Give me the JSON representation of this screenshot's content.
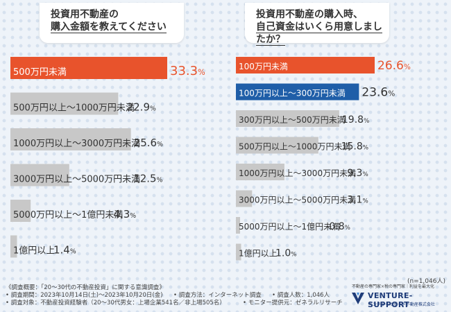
{
  "questions": {
    "left": {
      "line1": "投資用不動産の",
      "line2": "購入金額を教えてください"
    },
    "right": {
      "line1": "投資用不動産の購入時、",
      "line2": "自己資金はいくら用意しましたか？"
    }
  },
  "chart_data": [
    {
      "type": "bar",
      "categories": [
        "500万円未満",
        "500万円以上〜1000万円未満",
        "1000万円以上〜3000万円未満",
        "3000万円以上〜5000万円未満",
        "5000万円以上〜1億円未満",
        "1億円以上"
      ],
      "values": [
        33.3,
        22.9,
        25.6,
        12.5,
        4.3,
        1.4
      ],
      "value_labels": [
        "33.3%",
        "22.9%",
        "25.6%",
        "12.5%",
        "4.3%",
        "1.4%"
      ],
      "unit": "%",
      "highlight_color": "#e8532c",
      "base_color": "#c8c8c8",
      "bar_colors": [
        "#e8532c",
        "#c8c8c8",
        "#c8c8c8",
        "#c8c8c8",
        "#c8c8c8",
        "#c8c8c8"
      ]
    },
    {
      "type": "bar",
      "categories": [
        "100万円未満",
        "100万円以上〜300万円未満",
        "300万円以上〜500万円未満",
        "500万円以上〜1000万円未満",
        "1000万円以上〜3000万円未満",
        "3000万円以上〜5000万円未満",
        "5000万円以上〜1億円未満",
        "1億円以上"
      ],
      "values": [
        26.6,
        23.6,
        19.8,
        15.8,
        9.3,
        3.1,
        0.8,
        1.0
      ],
      "value_labels": [
        "26.6%",
        "23.6%",
        "19.8%",
        "15.8%",
        "9.3%",
        "3.1%",
        "0.8%",
        "1.0%"
      ],
      "unit": "%",
      "highlight_color": "#e8532c",
      "second_color": "#1f5ea8",
      "base_color": "#c8c8c8",
      "bar_colors": [
        "#e8532c",
        "#1f5ea8",
        "#c8c8c8",
        "#c8c8c8",
        "#c8c8c8",
        "#c8c8c8",
        "#c8c8c8",
        "#c8c8c8"
      ]
    }
  ],
  "sample_size": "(n=1,046人)",
  "footer": {
    "overview": "《調査概要：「20〜30代の不動産投資」に関する意識調査》",
    "period": "• 調査期間：2023年10月14日(土)〜2023年10月20日(金)",
    "method": "• 調査方法：インターネット調査",
    "count": "• 調査人数：1,046人",
    "target": "• 調査対象：不動産投資経験者（20〜30代男女：上場企業541名／非上場505名）",
    "provider": "• モニター提供元：ゼネラルリサーチ"
  },
  "logo": {
    "tagline": "不動産の専門家×税の専門家｜利益を最大化",
    "name": "VENTURE-SUPPORT",
    "sub": "ベンチャーサポート不動産株式会社",
    "color": "#1f3c79"
  }
}
